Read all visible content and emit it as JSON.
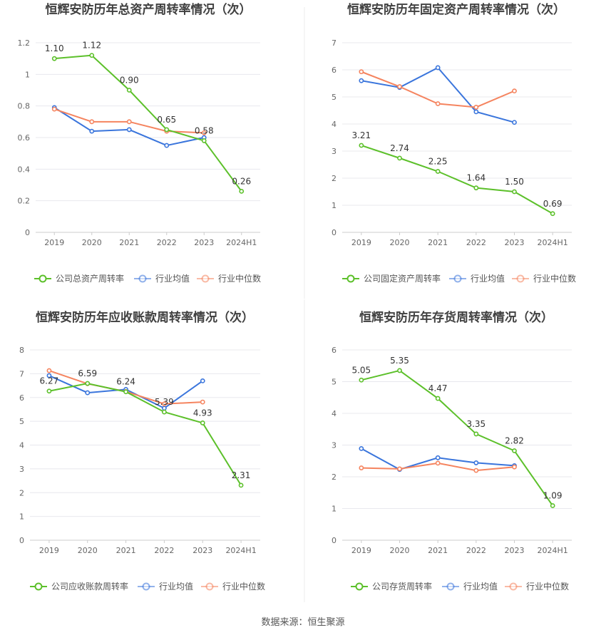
{
  "source": "数据来源：恒生聚源",
  "chart_data": [
    {
      "type": "line",
      "title": "恒辉安防历年总资产周转率情况（次）",
      "categories": [
        "2019",
        "2020",
        "2021",
        "2022",
        "2023",
        "2024H1"
      ],
      "ylim": [
        0,
        1.2
      ],
      "yticks": [
        "0",
        "0.2",
        "0.4",
        "0.6",
        "0.8",
        "1",
        "1.2"
      ],
      "series": [
        {
          "name": "公司总资产周转率",
          "color": "#5cc02a",
          "labels": true,
          "values": [
            1.1,
            1.12,
            0.9,
            0.65,
            0.58,
            0.26
          ],
          "value_labels": [
            "1.10",
            "1.12",
            "0.90",
            "0.65",
            "0.58",
            "0.26"
          ]
        },
        {
          "name": "行业均值",
          "color": "#3a75dc",
          "labels": false,
          "values": [
            0.79,
            0.64,
            0.65,
            0.55,
            0.6,
            null
          ]
        },
        {
          "name": "行业中位数",
          "color": "#f5845f",
          "labels": false,
          "values": [
            0.78,
            0.7,
            0.7,
            0.64,
            0.63,
            null
          ]
        }
      ]
    },
    {
      "type": "line",
      "title": "恒辉安防历年固定资产周转率情况（次）",
      "categories": [
        "2019",
        "2020",
        "2021",
        "2022",
        "2023",
        "2024H1"
      ],
      "ylim": [
        0,
        7
      ],
      "yticks": [
        "0",
        "1",
        "2",
        "3",
        "4",
        "5",
        "6",
        "7"
      ],
      "series": [
        {
          "name": "公司固定资产周转率",
          "color": "#5cc02a",
          "labels": true,
          "values": [
            3.21,
            2.74,
            2.25,
            1.64,
            1.5,
            0.69
          ],
          "value_labels": [
            "3.21",
            "2.74",
            "2.25",
            "1.64",
            "1.50",
            "0.69"
          ]
        },
        {
          "name": "行业均值",
          "color": "#3a75dc",
          "labels": false,
          "values": [
            5.6,
            5.35,
            6.08,
            4.45,
            4.06,
            null
          ]
        },
        {
          "name": "行业中位数",
          "color": "#f5845f",
          "labels": false,
          "values": [
            5.93,
            5.38,
            4.75,
            4.62,
            5.22,
            null
          ]
        }
      ]
    },
    {
      "type": "line",
      "title": "恒辉安防历年应收账款周转率情况（次）",
      "categories": [
        "2019",
        "2020",
        "2021",
        "2022",
        "2023",
        "2024H1"
      ],
      "ylim": [
        0,
        8
      ],
      "yticks": [
        "0",
        "1",
        "2",
        "3",
        "4",
        "5",
        "6",
        "7",
        "8"
      ],
      "series": [
        {
          "name": "公司应收账款周转率",
          "color": "#5cc02a",
          "labels": true,
          "values": [
            6.27,
            6.59,
            6.24,
            5.39,
            4.93,
            2.31
          ],
          "value_labels": [
            "6.27",
            "6.59",
            "6.24",
            "5.39",
            "4.93",
            "2.31"
          ]
        },
        {
          "name": "行业均值",
          "color": "#3a75dc",
          "labels": false,
          "values": [
            6.92,
            6.2,
            6.34,
            5.55,
            6.7,
            null
          ]
        },
        {
          "name": "行业中位数",
          "color": "#f5845f",
          "labels": false,
          "values": [
            7.13,
            6.58,
            6.25,
            5.73,
            5.81,
            null
          ]
        }
      ]
    },
    {
      "type": "line",
      "title": "恒辉安防历年存货周转率情况（次）",
      "categories": [
        "2019",
        "2020",
        "2021",
        "2022",
        "2023",
        "2024H1"
      ],
      "ylim": [
        0,
        6
      ],
      "yticks": [
        "0",
        "1",
        "2",
        "3",
        "4",
        "5",
        "6"
      ],
      "series": [
        {
          "name": "公司存货周转率",
          "color": "#5cc02a",
          "labels": true,
          "values": [
            5.05,
            5.35,
            4.47,
            3.35,
            2.82,
            1.09
          ],
          "value_labels": [
            "5.05",
            "5.35",
            "4.47",
            "3.35",
            "2.82",
            "1.09"
          ]
        },
        {
          "name": "行业均值",
          "color": "#3a75dc",
          "labels": false,
          "values": [
            2.89,
            2.23,
            2.6,
            2.44,
            2.35,
            null
          ]
        },
        {
          "name": "行业中位数",
          "color": "#f5845f",
          "labels": false,
          "values": [
            2.28,
            2.25,
            2.43,
            2.2,
            2.31,
            null
          ]
        }
      ]
    }
  ]
}
